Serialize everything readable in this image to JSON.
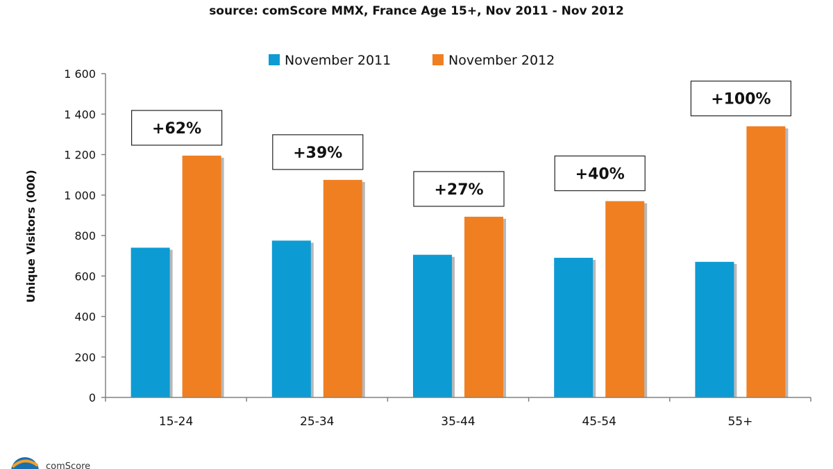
{
  "subtitle": "source: comScore MMX, France Age 15+, Nov 2011 - Nov 2012",
  "logo_text": "comScore",
  "colors": {
    "series_2011": "#0d9bd4",
    "series_2012": "#f07f22",
    "axis": "#808080",
    "shadow": "#b8b8b8"
  },
  "chart_data": {
    "type": "bar",
    "title": "",
    "subtitle": "source: comScore MMX, France Age 15+, Nov 2011 - Nov 2012",
    "xlabel": "",
    "ylabel": "Unique Visitors (000)",
    "ylim": [
      0,
      1600
    ],
    "yticks": [
      0,
      200,
      400,
      600,
      800,
      1000,
      1200,
      1400,
      1600
    ],
    "ytick_labels": [
      "0",
      "200",
      "400",
      "600",
      "800",
      "1 000",
      "1 200",
      "1 400",
      "1 600"
    ],
    "categories": [
      "15-24",
      "25-34",
      "35-44",
      "45-54",
      "55+"
    ],
    "series": [
      {
        "name": "November 2011",
        "color": "#0d9bd4",
        "values": [
          740,
          775,
          705,
          690,
          670
        ]
      },
      {
        "name": "November 2012",
        "color": "#f07f22",
        "values": [
          1195,
          1075,
          893,
          970,
          1340
        ]
      }
    ],
    "annotations": [
      "+62%",
      "+39%",
      "+27%",
      "+40%",
      "+100%"
    ],
    "legend": "top-center",
    "grid": false
  }
}
